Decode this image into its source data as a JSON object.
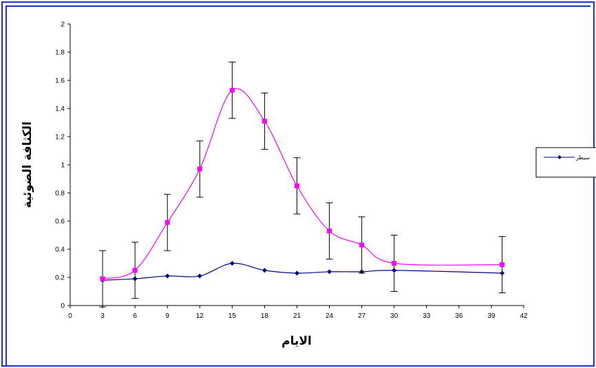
{
  "chart_data": {
    "type": "line",
    "xlabel": "الايام",
    "ylabel": "الكثافة الضوئية",
    "xlim": [
      0,
      42
    ],
    "ylim": [
      0,
      2
    ],
    "xticks": [
      0,
      3,
      6,
      9,
      12,
      15,
      18,
      21,
      24,
      27,
      30,
      33,
      36,
      39,
      42
    ],
    "yticks": [
      0,
      0.2,
      0.4,
      0.6,
      0.8,
      1,
      1.2,
      1.4,
      1.6,
      1.8,
      2
    ],
    "ytick_labels": [
      "0",
      "0.2",
      "0.4",
      "0.6",
      "0.8",
      "1",
      "1.2",
      "1.4",
      "1.6",
      "1.8",
      "2"
    ],
    "grid": false,
    "legend_position": "right",
    "series": [
      {
        "name": "سيطر",
        "color": "#000080",
        "marker": "diamond",
        "x": [
          3,
          6,
          9,
          12,
          15,
          18,
          21,
          24,
          27,
          30,
          40
        ],
        "y": [
          0.18,
          0.19,
          0.21,
          0.21,
          0.3,
          0.25,
          0.23,
          0.24,
          0.24,
          0.25,
          0.23
        ]
      },
      {
        "name": "",
        "color": "#ff00ff",
        "marker": "square",
        "x": [
          3,
          6,
          9,
          12,
          15,
          18,
          21,
          24,
          27,
          30,
          40
        ],
        "y": [
          0.19,
          0.25,
          0.59,
          0.97,
          1.53,
          1.31,
          0.85,
          0.53,
          0.43,
          0.3,
          0.29
        ],
        "error": [
          0.2,
          0.2,
          0.2,
          0.2,
          0.2,
          0.2,
          0.2,
          0.2,
          0.2,
          0.2,
          0.2
        ]
      }
    ]
  }
}
